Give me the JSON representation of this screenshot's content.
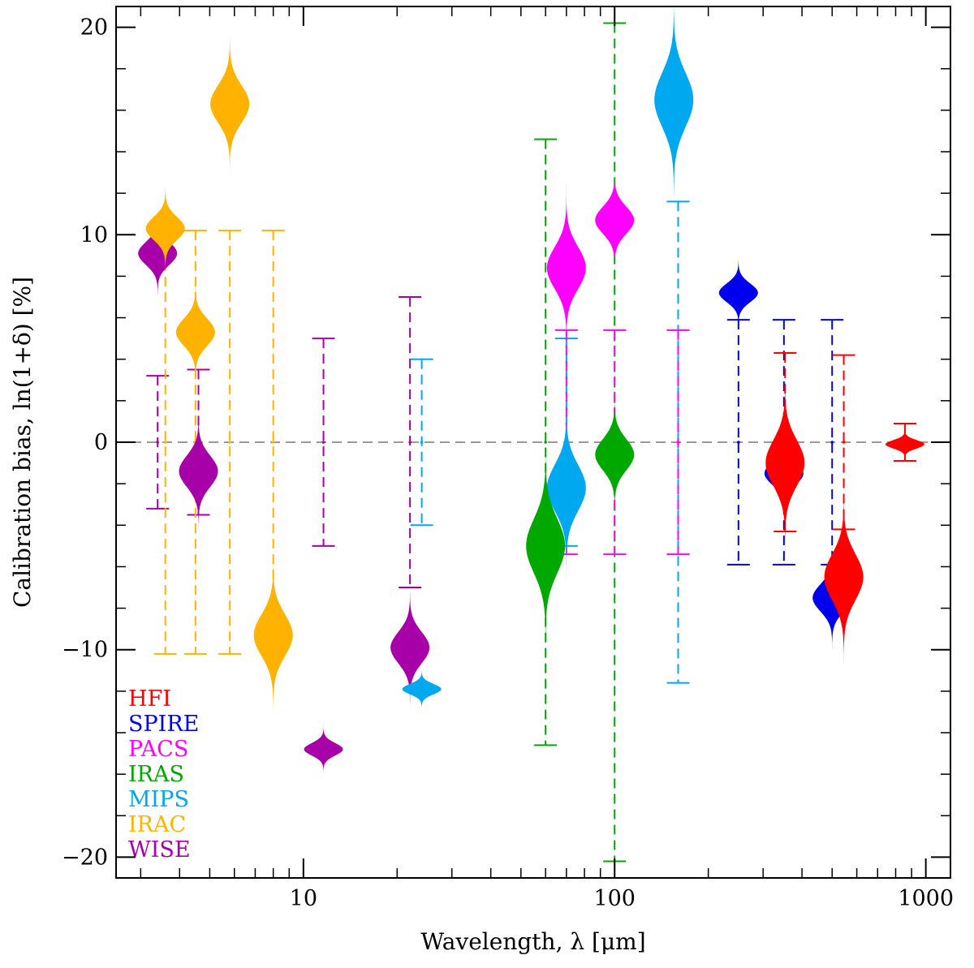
{
  "chart_data": {
    "type": "scatter",
    "xscale": "log",
    "xlim": [
      2.5,
      1200
    ],
    "ylim": [
      -21,
      21
    ],
    "xlabel": "Wavelength, λ [μm]",
    "ylabel": "Calibration bias, ln(1+δ) [%]",
    "xticks": [
      10,
      100,
      1000
    ],
    "xtick_labels": [
      "10",
      "100",
      "1000"
    ],
    "yticks": [
      -20,
      -10,
      0,
      10,
      20
    ],
    "ytick_labels": [
      "−20",
      "−10",
      "0",
      "10",
      "20"
    ],
    "zero_line": {
      "y": 0,
      "style": "dashed",
      "color": "#999999"
    },
    "legend": {
      "placement": "bottom-left",
      "entries": [
        {
          "label": "HFI",
          "color": "#ff0000"
        },
        {
          "label": "SPIRE",
          "color": "#0000ee"
        },
        {
          "label": "PACS",
          "color": "#ff00ff"
        },
        {
          "label": "IRAS",
          "color": "#00a800"
        },
        {
          "label": "MIPS",
          "color": "#00a8f0"
        },
        {
          "label": "IRAC",
          "color": "#ffb300"
        },
        {
          "label": "WISE",
          "color": "#a800a8"
        }
      ]
    },
    "error_bars": [
      {
        "instrument": "WISE",
        "x": 3.4,
        "low": -3.2,
        "high": 3.2,
        "color": "#a800a8"
      },
      {
        "instrument": "WISE",
        "x": 4.6,
        "low": -3.5,
        "high": 3.5,
        "color": "#a800a8"
      },
      {
        "instrument": "WISE",
        "x": 11.6,
        "low": -5.0,
        "high": 5.0,
        "color": "#a800a8"
      },
      {
        "instrument": "WISE",
        "x": 22.0,
        "low": -7.0,
        "high": 7.0,
        "color": "#a800a8"
      },
      {
        "instrument": "IRAC",
        "x": 3.6,
        "low": -10.2,
        "high": 10.2,
        "color": "#ffb300"
      },
      {
        "instrument": "IRAC",
        "x": 4.5,
        "low": -10.2,
        "high": 10.2,
        "color": "#ffb300"
      },
      {
        "instrument": "IRAC",
        "x": 5.8,
        "low": -10.2,
        "high": 10.2,
        "color": "#ffb300"
      },
      {
        "instrument": "IRAC",
        "x": 8.0,
        "low": -10.2,
        "high": 10.2,
        "color": "#ffb300"
      },
      {
        "instrument": "MIPS",
        "x": 24.0,
        "low": -4.0,
        "high": 4.0,
        "color": "#00a8f0"
      },
      {
        "instrument": "MIPS",
        "x": 70.0,
        "low": -5.0,
        "high": 5.0,
        "color": "#00a8f0"
      },
      {
        "instrument": "MIPS",
        "x": 160.0,
        "low": -11.6,
        "high": 11.6,
        "color": "#00a8f0"
      },
      {
        "instrument": "IRAS",
        "x": 60.0,
        "low": -14.6,
        "high": 14.6,
        "color": "#00a800"
      },
      {
        "instrument": "IRAS",
        "x": 100.0,
        "low": -20.2,
        "high": 20.2,
        "color": "#00a800"
      },
      {
        "instrument": "PACS",
        "x": 70.0,
        "low": -5.4,
        "high": 5.4,
        "color": "#ff00ff"
      },
      {
        "instrument": "PACS",
        "x": 100.0,
        "low": -5.4,
        "high": 5.4,
        "color": "#ff00ff"
      },
      {
        "instrument": "PACS",
        "x": 160.0,
        "low": -5.4,
        "high": 5.4,
        "color": "#ff00ff"
      },
      {
        "instrument": "SPIRE",
        "x": 250.0,
        "low": -5.9,
        "high": 5.9,
        "color": "#0000ee"
      },
      {
        "instrument": "SPIRE",
        "x": 350.0,
        "low": -5.9,
        "high": 5.9,
        "color": "#0000ee"
      },
      {
        "instrument": "SPIRE",
        "x": 500.0,
        "low": -5.9,
        "high": 5.9,
        "color": "#0000ee"
      },
      {
        "instrument": "HFI",
        "x": 353.0,
        "low": -4.3,
        "high": 4.3,
        "color": "#ff0000"
      },
      {
        "instrument": "HFI",
        "x": 545.0,
        "low": -4.2,
        "high": 4.2,
        "color": "#ff0000"
      },
      {
        "instrument": "HFI",
        "x": 857.0,
        "low": -0.9,
        "high": 0.9,
        "color": "#ff0000"
      }
    ],
    "posteriors": [
      {
        "instrument": "WISE",
        "x": 3.4,
        "center": 9.1,
        "spread": 0.55,
        "color": "#a800a8"
      },
      {
        "instrument": "WISE",
        "x": 4.6,
        "center": -1.4,
        "spread": 0.75,
        "color": "#a800a8"
      },
      {
        "instrument": "WISE",
        "x": 11.6,
        "center": -14.8,
        "spread": 0.3,
        "color": "#a800a8"
      },
      {
        "instrument": "WISE",
        "x": 22.0,
        "center": -9.9,
        "spread": 0.75,
        "color": "#a800a8"
      },
      {
        "instrument": "IRAC",
        "x": 3.6,
        "center": 10.3,
        "spread": 0.55,
        "color": "#ffb300"
      },
      {
        "instrument": "IRAC",
        "x": 4.5,
        "center": 5.3,
        "spread": 0.65,
        "color": "#ffb300"
      },
      {
        "instrument": "IRAC",
        "x": 5.8,
        "center": 16.3,
        "spread": 0.9,
        "color": "#ffb300"
      },
      {
        "instrument": "IRAC",
        "x": 8.0,
        "center": -9.3,
        "spread": 1.0,
        "color": "#ffb300"
      },
      {
        "instrument": "MIPS",
        "x": 24.0,
        "center": -11.9,
        "spread": 0.25,
        "color": "#00a8f0"
      },
      {
        "instrument": "MIPS",
        "x": 70.0,
        "center": -2.2,
        "spread": 1.1,
        "color": "#00a8f0"
      },
      {
        "instrument": "MIPS",
        "x": 155.0,
        "center": 16.5,
        "spread": 1.3,
        "color": "#00a8f0"
      },
      {
        "instrument": "IRAS",
        "x": 60.0,
        "center": -5.0,
        "spread": 1.3,
        "color": "#00a800"
      },
      {
        "instrument": "IRAS",
        "x": 100.0,
        "center": -0.6,
        "spread": 0.75,
        "color": "#00a800"
      },
      {
        "instrument": "PACS",
        "x": 70.0,
        "center": 8.4,
        "spread": 1.0,
        "color": "#ff00ff"
      },
      {
        "instrument": "PACS",
        "x": 100.0,
        "center": 10.7,
        "spread": 0.65,
        "color": "#ff00ff"
      },
      {
        "instrument": "SPIRE",
        "x": 250.0,
        "center": 7.2,
        "spread": 0.45,
        "color": "#0000ee"
      },
      {
        "instrument": "SPIRE",
        "x": 350.0,
        "center": -1.5,
        "spread": 0.55,
        "color": "#0000ee"
      },
      {
        "instrument": "SPIRE",
        "x": 500.0,
        "center": -7.5,
        "spread": 0.65,
        "color": "#0000ee"
      },
      {
        "instrument": "HFI",
        "x": 353.0,
        "center": -1.0,
        "spread": 1.1,
        "color": "#ff0000"
      },
      {
        "instrument": "HFI",
        "x": 545.0,
        "center": -6.5,
        "spread": 1.1,
        "color": "#ff0000"
      },
      {
        "instrument": "HFI",
        "x": 857.0,
        "center": -0.1,
        "spread": 0.2,
        "color": "#ff0000"
      }
    ]
  }
}
